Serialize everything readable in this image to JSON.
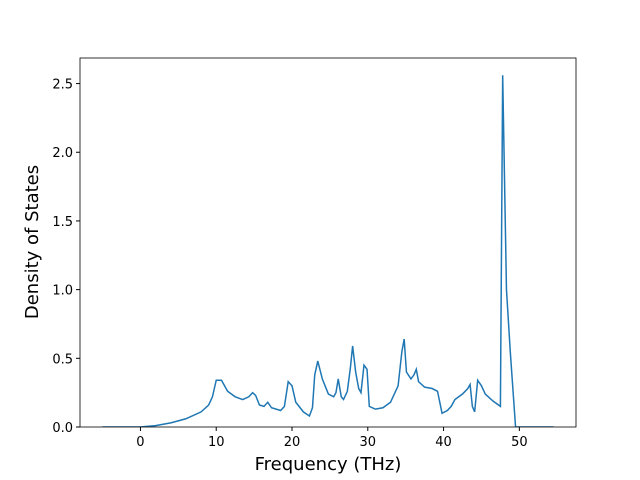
{
  "chart_data": {
    "type": "line",
    "x_label": "Frequency (THz)",
    "y_label": "Density of States",
    "xlim": [
      -7.975,
      57.475
    ],
    "ylim": [
      0,
      2.686
    ],
    "xticks": [
      0,
      10,
      20,
      30,
      40,
      50
    ],
    "yticks": [
      {
        "value": 0,
        "label": "0.0"
      },
      0.5,
      {
        "value": 1,
        "label": "1.0"
      },
      1.5,
      {
        "value": 2,
        "label": "2.0"
      },
      2.5
    ],
    "series": [
      {
        "color": "#1f77b4",
        "x": [
          -5,
          0,
          2,
          4,
          6,
          8,
          9,
          9.5,
          10,
          10.7,
          11.5,
          12.5,
          13.5,
          14.3,
          14.8,
          15.2,
          15.7,
          16.3,
          16.8,
          17.3,
          18.5,
          19,
          19.5,
          20,
          20.5,
          21.5,
          22.3,
          22.7,
          23,
          23.4,
          24,
          24.8,
          25.5,
          25.8,
          26.1,
          26.5,
          26.8,
          27.3,
          27.7,
          28,
          28.4,
          28.8,
          29.1,
          29.5,
          29.9,
          30.2,
          31,
          32,
          33,
          34,
          34.5,
          34.8,
          35.1,
          35.7,
          36.1,
          36.4,
          36.7,
          37.5,
          38.5,
          39.2,
          39.8,
          40.5,
          41,
          41.5,
          42.5,
          43.2,
          43.5,
          43.8,
          44.1,
          44.5,
          45,
          45.5,
          46.5,
          47.5,
          47.8,
          48.3,
          48.8,
          49.5,
          50,
          54.5
        ],
        "values": [
          0,
          0,
          0.01,
          0.03,
          0.06,
          0.11,
          0.16,
          0.22,
          0.34,
          0.34,
          0.26,
          0.22,
          0.2,
          0.22,
          0.25,
          0.23,
          0.16,
          0.15,
          0.18,
          0.14,
          0.12,
          0.15,
          0.33,
          0.3,
          0.18,
          0.11,
          0.08,
          0.14,
          0.38,
          0.48,
          0.35,
          0.24,
          0.22,
          0.25,
          0.35,
          0.22,
          0.2,
          0.26,
          0.43,
          0.59,
          0.4,
          0.28,
          0.25,
          0.45,
          0.42,
          0.15,
          0.13,
          0.14,
          0.18,
          0.3,
          0.55,
          0.64,
          0.4,
          0.35,
          0.38,
          0.42,
          0.33,
          0.29,
          0.28,
          0.26,
          0.1,
          0.12,
          0.15,
          0.2,
          0.24,
          0.28,
          0.31,
          0.15,
          0.11,
          0.34,
          0.3,
          0.24,
          0.19,
          0.15,
          2.56,
          1.0,
          0.55,
          0,
          0,
          0
        ]
      }
    ]
  }
}
